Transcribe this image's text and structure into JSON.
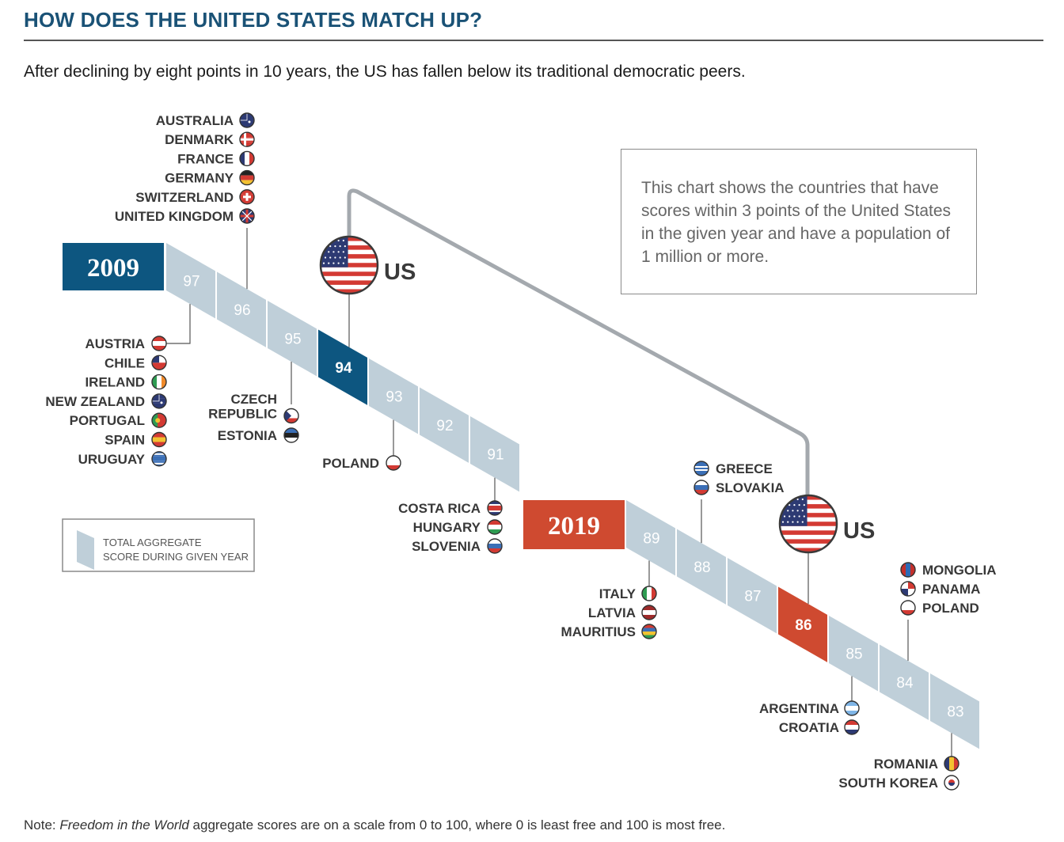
{
  "header": {
    "title": "HOW DOES THE UNITED STATES MATCH UP?",
    "subtitle": "After declining by eight points in 10 years, the US has fallen below its traditional democratic peers."
  },
  "info_box": {
    "text": "This chart shows the countries that have scores within 3 points of the United States in the given year and have a population of 1 million or more."
  },
  "legend": {
    "line1": "TOTAL AGGREGATE",
    "line2": "SCORE DURING GIVEN YEAR"
  },
  "note": {
    "prefix": "Note: ",
    "italic": "Freedom in the World",
    "suffix": " aggregate scores are on a scale from 0 to 100, where 0 is least free and 100 is most free."
  },
  "colors": {
    "year_2009": "#0d5680",
    "year_2019": "#cf4a30",
    "segment": "#bfcfd9",
    "connector": "#a4a9ae",
    "flag_red": "#d33a33",
    "flag_blue": "#2d3a73"
  },
  "chart_data": {
    "type": "table",
    "highlight_label": "US",
    "years": [
      {
        "year": "2009",
        "scores": [
          97,
          96,
          95,
          94,
          93,
          92,
          91
        ],
        "us_score": 94,
        "countries_by_score": [
          {
            "score": 97,
            "countries": [
              "AUSTRIA",
              "CHILE",
              "IRELAND",
              "NEW ZEALAND",
              "PORTUGAL",
              "SPAIN",
              "URUGUAY"
            ]
          },
          {
            "score": 96,
            "countries": [
              "AUSTRALIA",
              "DENMARK",
              "FRANCE",
              "GERMANY",
              "SWITZERLAND",
              "UNITED KINGDOM"
            ]
          },
          {
            "score": 95,
            "countries": [
              "CZECH REPUBLIC",
              "ESTONIA"
            ]
          },
          {
            "score": 93,
            "countries": [
              "POLAND"
            ]
          },
          {
            "score": 91,
            "countries": [
              "COSTA RICA",
              "HUNGARY",
              "SLOVENIA"
            ]
          }
        ]
      },
      {
        "year": "2019",
        "scores": [
          89,
          88,
          87,
          86,
          85,
          84,
          83
        ],
        "us_score": 86,
        "countries_by_score": [
          {
            "score": 89,
            "countries": [
              "ITALY",
              "LATVIA",
              "MAURITIUS"
            ]
          },
          {
            "score": 88,
            "countries": [
              "GREECE",
              "SLOVAKIA"
            ]
          },
          {
            "score": 85,
            "countries": [
              "ARGENTINA",
              "CROATIA"
            ]
          },
          {
            "score": 84,
            "countries": [
              "MONGOLIA",
              "PANAMA",
              "POLAND"
            ]
          },
          {
            "score": 83,
            "countries": [
              "ROMANIA",
              "SOUTH KOREA"
            ]
          }
        ]
      }
    ]
  }
}
